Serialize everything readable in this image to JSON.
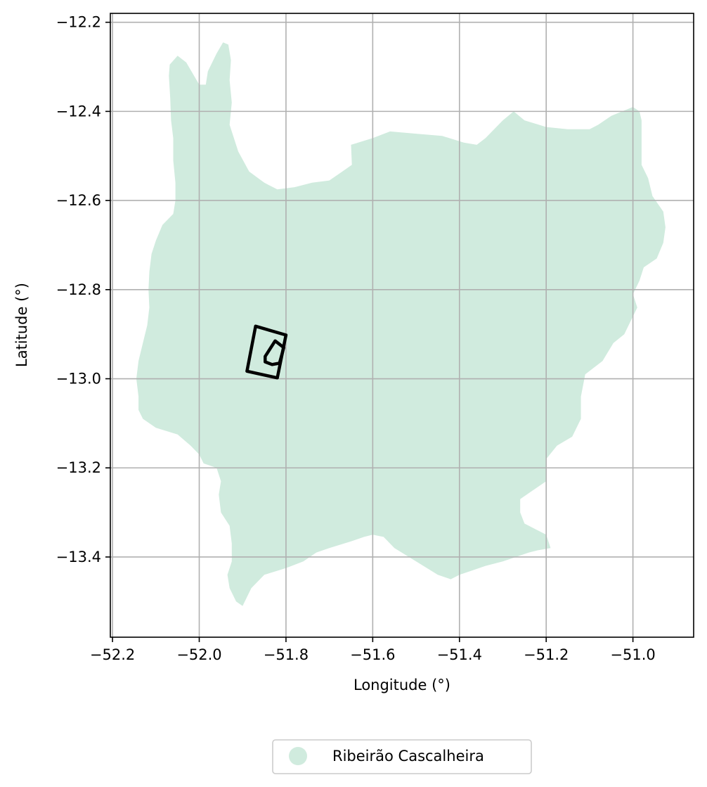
{
  "chart_data": {
    "type": "map",
    "xlabel": "Longitude (°)",
    "ylabel": "Latitude (°)",
    "xlim": [
      -52.205,
      -50.86
    ],
    "ylim": [
      -13.58,
      -12.18
    ],
    "x_ticks": [
      -52.2,
      -52.0,
      -51.8,
      -51.6,
      -51.4,
      -51.2,
      -51.0
    ],
    "x_tick_labels": [
      "−52.2",
      "−52.0",
      "−51.8",
      "−51.6",
      "−51.4",
      "−51.2",
      "−51.0"
    ],
    "y_ticks": [
      -12.2,
      -12.4,
      -12.6,
      -12.8,
      -13.0,
      -13.2,
      -13.4
    ],
    "y_tick_labels": [
      "−12.2",
      "−12.4",
      "−12.6",
      "−12.8",
      "−13.0",
      "−13.2",
      "−13.4"
    ],
    "grid": true,
    "legend": {
      "placement": "bottom-center",
      "entries": [
        {
          "label": "Ribeirão Cascalheira",
          "color": "#d0ebde"
        }
      ]
    },
    "region": {
      "name": "Ribeirão Cascalheira",
      "color": "#d0ebde",
      "boundary": [
        [
          -52.068,
          -12.295
        ],
        [
          -52.05,
          -12.275
        ],
        [
          -52.03,
          -12.29
        ],
        [
          -52.0,
          -12.34
        ],
        [
          -51.985,
          -12.34
        ],
        [
          -51.98,
          -12.31
        ],
        [
          -51.96,
          -12.27
        ],
        [
          -51.945,
          -12.245
        ],
        [
          -51.933,
          -12.25
        ],
        [
          -51.927,
          -12.285
        ],
        [
          -51.93,
          -12.33
        ],
        [
          -51.925,
          -12.38
        ],
        [
          -51.93,
          -12.43
        ],
        [
          -51.91,
          -12.49
        ],
        [
          -51.885,
          -12.535
        ],
        [
          -51.85,
          -12.56
        ],
        [
          -51.82,
          -12.575
        ],
        [
          -51.78,
          -12.57
        ],
        [
          -51.74,
          -12.56
        ],
        [
          -51.7,
          -12.555
        ],
        [
          -51.67,
          -12.535
        ],
        [
          -51.648,
          -12.52
        ],
        [
          -51.65,
          -12.475
        ],
        [
          -51.6,
          -12.46
        ],
        [
          -51.56,
          -12.445
        ],
        [
          -51.5,
          -12.45
        ],
        [
          -51.44,
          -12.455
        ],
        [
          -51.39,
          -12.47
        ],
        [
          -51.36,
          -12.475
        ],
        [
          -51.34,
          -12.46
        ],
        [
          -51.3,
          -12.42
        ],
        [
          -51.275,
          -12.4
        ],
        [
          -51.25,
          -12.42
        ],
        [
          -51.2,
          -12.435
        ],
        [
          -51.15,
          -12.44
        ],
        [
          -51.1,
          -12.44
        ],
        [
          -51.08,
          -12.43
        ],
        [
          -51.05,
          -12.41
        ],
        [
          -51.0,
          -12.39
        ],
        [
          -50.985,
          -12.4
        ],
        [
          -50.98,
          -12.42
        ],
        [
          -50.98,
          -12.47
        ],
        [
          -50.98,
          -12.52
        ],
        [
          -50.965,
          -12.55
        ],
        [
          -50.955,
          -12.59
        ],
        [
          -50.93,
          -12.625
        ],
        [
          -50.925,
          -12.66
        ],
        [
          -50.93,
          -12.695
        ],
        [
          -50.945,
          -12.73
        ],
        [
          -50.975,
          -12.75
        ],
        [
          -50.985,
          -12.78
        ],
        [
          -51.0,
          -12.81
        ],
        [
          -50.99,
          -12.84
        ],
        [
          -51.005,
          -12.87
        ],
        [
          -51.02,
          -12.9
        ],
        [
          -51.045,
          -12.92
        ],
        [
          -51.07,
          -12.96
        ],
        [
          -51.11,
          -12.99
        ],
        [
          -51.12,
          -13.04
        ],
        [
          -51.12,
          -13.09
        ],
        [
          -51.14,
          -13.13
        ],
        [
          -51.175,
          -13.15
        ],
        [
          -51.2,
          -13.18
        ],
        [
          -51.2,
          -13.23
        ],
        [
          -51.23,
          -13.25
        ],
        [
          -51.26,
          -13.27
        ],
        [
          -51.26,
          -13.3
        ],
        [
          -51.25,
          -13.325
        ],
        [
          -51.22,
          -13.34
        ],
        [
          -51.2,
          -13.35
        ],
        [
          -51.19,
          -13.38
        ],
        [
          -51.22,
          -13.385
        ],
        [
          -51.24,
          -13.39
        ],
        [
          -51.3,
          -13.41
        ],
        [
          -51.34,
          -13.42
        ],
        [
          -51.37,
          -13.43
        ],
        [
          -51.4,
          -13.44
        ],
        [
          -51.42,
          -13.45
        ],
        [
          -51.45,
          -13.44
        ],
        [
          -51.5,
          -13.41
        ],
        [
          -51.55,
          -13.38
        ],
        [
          -51.575,
          -13.355
        ],
        [
          -51.6,
          -13.35
        ],
        [
          -51.62,
          -13.355
        ],
        [
          -51.65,
          -13.365
        ],
        [
          -51.7,
          -13.38
        ],
        [
          -51.73,
          -13.39
        ],
        [
          -51.76,
          -13.41
        ],
        [
          -51.8,
          -13.425
        ],
        [
          -51.85,
          -13.44
        ],
        [
          -51.88,
          -13.47
        ],
        [
          -51.9,
          -13.51
        ],
        [
          -51.915,
          -13.5
        ],
        [
          -51.93,
          -13.47
        ],
        [
          -51.935,
          -13.44
        ],
        [
          -51.925,
          -13.41
        ],
        [
          -51.925,
          -13.37
        ],
        [
          -51.93,
          -13.33
        ],
        [
          -51.95,
          -13.3
        ],
        [
          -51.955,
          -13.26
        ],
        [
          -51.95,
          -13.23
        ],
        [
          -51.96,
          -13.2
        ],
        [
          -51.99,
          -13.19
        ],
        [
          -52.0,
          -13.17
        ],
        [
          -52.02,
          -13.15
        ],
        [
          -52.05,
          -13.125
        ],
        [
          -52.1,
          -13.11
        ],
        [
          -52.13,
          -13.09
        ],
        [
          -52.14,
          -13.07
        ],
        [
          -52.14,
          -13.04
        ],
        [
          -52.145,
          -13.0
        ],
        [
          -52.14,
          -12.96
        ],
        [
          -52.13,
          -12.92
        ],
        [
          -52.12,
          -12.88
        ],
        [
          -52.115,
          -12.84
        ],
        [
          -52.117,
          -12.8
        ],
        [
          -52.115,
          -12.76
        ],
        [
          -52.11,
          -12.72
        ],
        [
          -52.1,
          -12.69
        ],
        [
          -52.085,
          -12.655
        ],
        [
          -52.06,
          -12.63
        ],
        [
          -52.055,
          -12.6
        ],
        [
          -52.055,
          -12.56
        ],
        [
          -52.06,
          -12.51
        ],
        [
          -52.06,
          -12.46
        ],
        [
          -52.065,
          -12.42
        ],
        [
          -52.067,
          -12.37
        ],
        [
          -52.07,
          -12.32
        ]
      ]
    },
    "outlines": [
      {
        "label": "",
        "points": [
          [
            -51.87,
            -12.882
          ],
          [
            -51.8,
            -12.902
          ],
          [
            -51.82,
            -12.998
          ],
          [
            -51.89,
            -12.983
          ]
        ]
      },
      {
        "label": "",
        "points": [
          [
            -51.825,
            -12.915
          ],
          [
            -51.805,
            -12.93
          ],
          [
            -51.815,
            -12.965
          ],
          [
            -51.832,
            -12.968
          ],
          [
            -51.848,
            -12.962
          ],
          [
            -51.848,
            -12.95
          ]
        ]
      }
    ]
  }
}
